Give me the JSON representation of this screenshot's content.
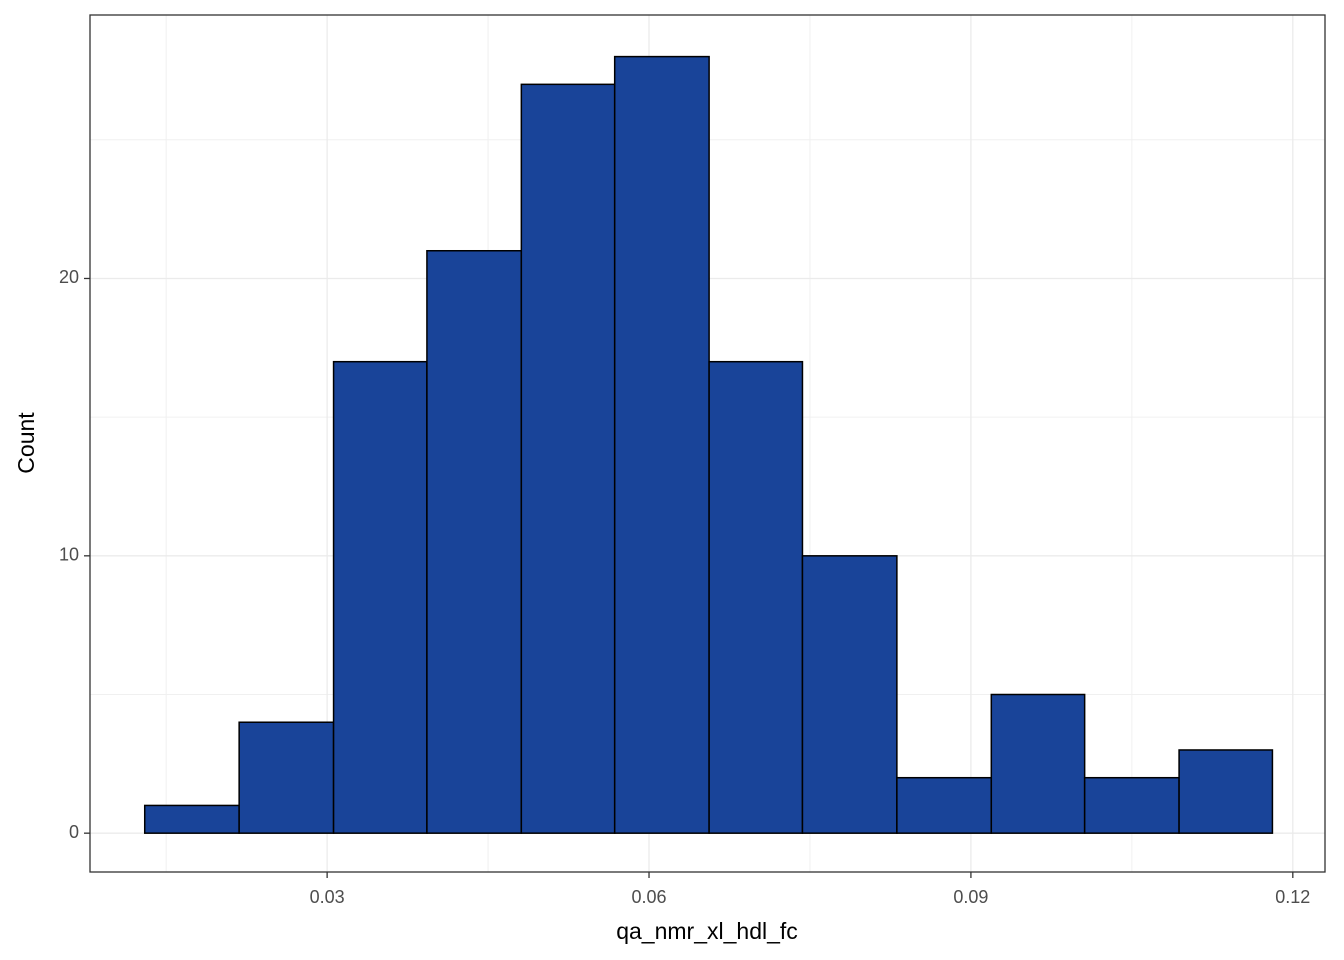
{
  "chart_data": {
    "type": "histogram",
    "x_label": "qa_nmr_xl_hdl_fc",
    "y_label": "Count",
    "bins": [
      0.013,
      0.0218,
      0.0306,
      0.0393,
      0.0481,
      0.0568,
      0.0656,
      0.0743,
      0.0831,
      0.0919,
      0.1006,
      0.1094,
      0.1181
    ],
    "values": [
      1,
      4,
      17,
      21,
      27,
      28,
      17,
      10,
      2,
      5,
      2,
      3
    ],
    "color": "#194499",
    "edge_color": "#000000",
    "xlim": [
      0.0079,
      0.123
    ],
    "ylim": [
      -1.4,
      29.5
    ],
    "xticks": [
      0.03,
      0.06,
      0.09,
      0.12
    ],
    "yticks": [
      0,
      10,
      20
    ],
    "grid": true
  }
}
